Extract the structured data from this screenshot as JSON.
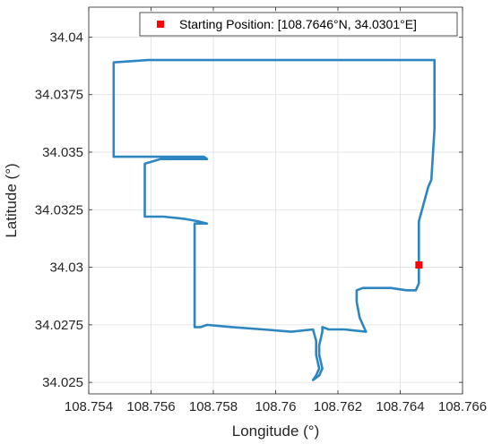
{
  "chart_data": {
    "type": "line",
    "title": "",
    "xlabel": "Longitude (°)",
    "ylabel": "Latitude (°)",
    "xlim": [
      108.754,
      108.766
    ],
    "ylim": [
      34.0245,
      34.0413
    ],
    "xticks": [
      108.754,
      108.756,
      108.758,
      108.76,
      108.762,
      108.764,
      108.766
    ],
    "xtick_labels": [
      "108.754",
      "108.756",
      "108.758",
      "108.76",
      "108.762",
      "108.764",
      "108.766"
    ],
    "yticks": [
      34.025,
      34.0275,
      34.03,
      34.0325,
      34.035,
      34.0375,
      34.04
    ],
    "ytick_labels": [
      "34.025",
      "34.0275",
      "34.03",
      "34.0325",
      "34.035",
      "34.0375",
      "34.04"
    ],
    "grid": true,
    "legend_position": "top-right",
    "series": [
      {
        "name": "",
        "color": "#2E86C1",
        "x": [
          108.7646,
          108.7646,
          108.7649,
          108.765,
          108.7651,
          108.7651,
          108.7651,
          108.7648,
          108.7639,
          108.7627,
          108.7608,
          108.7589,
          108.7572,
          108.7559,
          108.7548,
          108.7548,
          108.7548,
          108.7548,
          108.7556,
          108.7565,
          108.7574,
          108.7577,
          108.7578,
          108.7577,
          108.757,
          108.7563,
          108.7558,
          108.7558,
          108.7558,
          108.7559,
          108.7564,
          108.7571,
          108.7575,
          108.7578,
          108.7574,
          108.7574,
          108.7574,
          108.7574,
          108.7574,
          108.7574,
          108.7574,
          108.7576,
          108.7578,
          108.7586,
          108.7596,
          108.7605,
          108.7612,
          108.7613,
          108.7613,
          108.7614,
          108.7613,
          108.7612,
          108.7614,
          108.7615,
          108.7614,
          108.7614,
          108.7615,
          108.7615,
          108.7617,
          108.7622,
          108.7629,
          108.7627,
          108.7626,
          108.7626,
          108.7628,
          108.7632,
          108.7637,
          108.7642,
          108.7645,
          108.7646,
          108.7646
        ],
        "y": [
          34.0301,
          34.032,
          34.0335,
          34.0338,
          34.036,
          34.038,
          34.039,
          34.039,
          34.039,
          34.039,
          34.039,
          34.039,
          34.039,
          34.039,
          34.0389,
          34.0375,
          34.036,
          34.0348,
          34.0348,
          34.0348,
          34.0348,
          34.0348,
          34.0347,
          34.0347,
          34.0347,
          34.0347,
          34.0345,
          34.0335,
          34.0322,
          34.0322,
          34.0322,
          34.0321,
          34.032,
          34.0319,
          34.0319,
          34.0305,
          34.0295,
          34.0285,
          34.0276,
          34.0274,
          34.0274,
          34.0274,
          34.0275,
          34.0274,
          34.0273,
          34.0272,
          34.0273,
          34.0268,
          34.0262,
          34.0256,
          34.0253,
          34.0251,
          34.0253,
          34.0256,
          34.0262,
          34.0266,
          34.0272,
          34.0274,
          34.0273,
          34.0273,
          34.0272,
          34.0278,
          34.0285,
          34.029,
          34.0291,
          34.0291,
          34.0291,
          34.029,
          34.029,
          34.0293,
          34.0301
        ]
      }
    ],
    "markers": [
      {
        "label": "Starting Position: [108.7646°N, 34.0301°E]",
        "x": 108.7646,
        "y": 34.0301,
        "color": "#FF0000",
        "shape": "square"
      }
    ]
  }
}
